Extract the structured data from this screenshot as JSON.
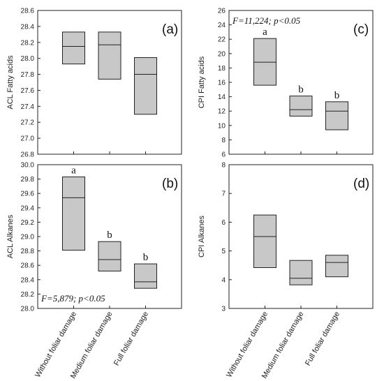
{
  "categories": [
    "Without foliar damage",
    "Medium foliar damage",
    "Full foliar damage"
  ],
  "chart_data": [
    {
      "panel": "(a)",
      "type": "box",
      "ylabel": "ACL Fatty acids",
      "ylim": [
        26.8,
        28.6
      ],
      "yticks": [
        "26.8",
        "27.0",
        "27.2",
        "27.4",
        "27.6",
        "27.8",
        "28.0",
        "28.2",
        "28.4",
        "28.6"
      ],
      "boxes": [
        {
          "category": "Without foliar damage",
          "q1": 27.93,
          "median": 28.15,
          "q3": 28.33
        },
        {
          "category": "Medium foliar damage",
          "q1": 27.74,
          "median": 28.17,
          "q3": 28.33
        },
        {
          "category": "Full foliar damage",
          "q1": 27.3,
          "median": 27.8,
          "q3": 28.01
        }
      ],
      "letters": [],
      "stat": ""
    },
    {
      "panel": "(c)",
      "type": "box",
      "ylabel": "CPI Fatty acids",
      "ylim": [
        6,
        26
      ],
      "yticks": [
        "6",
        "8",
        "10",
        "12",
        "14",
        "16",
        "18",
        "20",
        "22",
        "24",
        "26"
      ],
      "boxes": [
        {
          "category": "Without foliar damage",
          "q1": 15.6,
          "median": 18.8,
          "q3": 22.1
        },
        {
          "category": "Medium foliar damage",
          "q1": 11.3,
          "median": 12.2,
          "q3": 14.1
        },
        {
          "category": "Full foliar damage",
          "q1": 9.4,
          "median": 12.0,
          "q3": 13.3
        }
      ],
      "letters": [
        "a",
        "b",
        "b"
      ],
      "stat": "F=11,224; p<0.05"
    },
    {
      "panel": "(b)",
      "type": "box",
      "ylabel": "ACL Alkanes",
      "ylim": [
        28.0,
        30.0
      ],
      "yticks": [
        "28.0",
        "28.2",
        "28.4",
        "28.6",
        "28.8",
        "29.0",
        "29.2",
        "29.4",
        "29.6",
        "29.8",
        "30.0"
      ],
      "boxes": [
        {
          "category": "Without foliar damage",
          "q1": 28.81,
          "median": 29.54,
          "q3": 29.83
        },
        {
          "category": "Medium foliar damage",
          "q1": 28.52,
          "median": 28.68,
          "q3": 28.93
        },
        {
          "category": "Full foliar damage",
          "q1": 28.28,
          "median": 28.37,
          "q3": 28.62
        }
      ],
      "letters": [
        "a",
        "b",
        "b"
      ],
      "stat": "F=5,879; p<0.05"
    },
    {
      "panel": "(d)",
      "type": "box",
      "ylabel": "CPI Alkanes",
      "ylim": [
        3,
        8
      ],
      "yticks": [
        "3",
        "4",
        "5",
        "6",
        "7",
        "8"
      ],
      "boxes": [
        {
          "category": "Without foliar damage",
          "q1": 4.42,
          "median": 5.5,
          "q3": 6.25
        },
        {
          "category": "Medium foliar damage",
          "q1": 3.82,
          "median": 4.05,
          "q3": 4.67
        },
        {
          "category": "Full foliar damage",
          "q1": 4.1,
          "median": 4.6,
          "q3": 4.85
        }
      ],
      "letters": [],
      "stat": ""
    }
  ],
  "colors": {
    "box_fill": "#c8c8c8",
    "stroke": "#222222"
  }
}
